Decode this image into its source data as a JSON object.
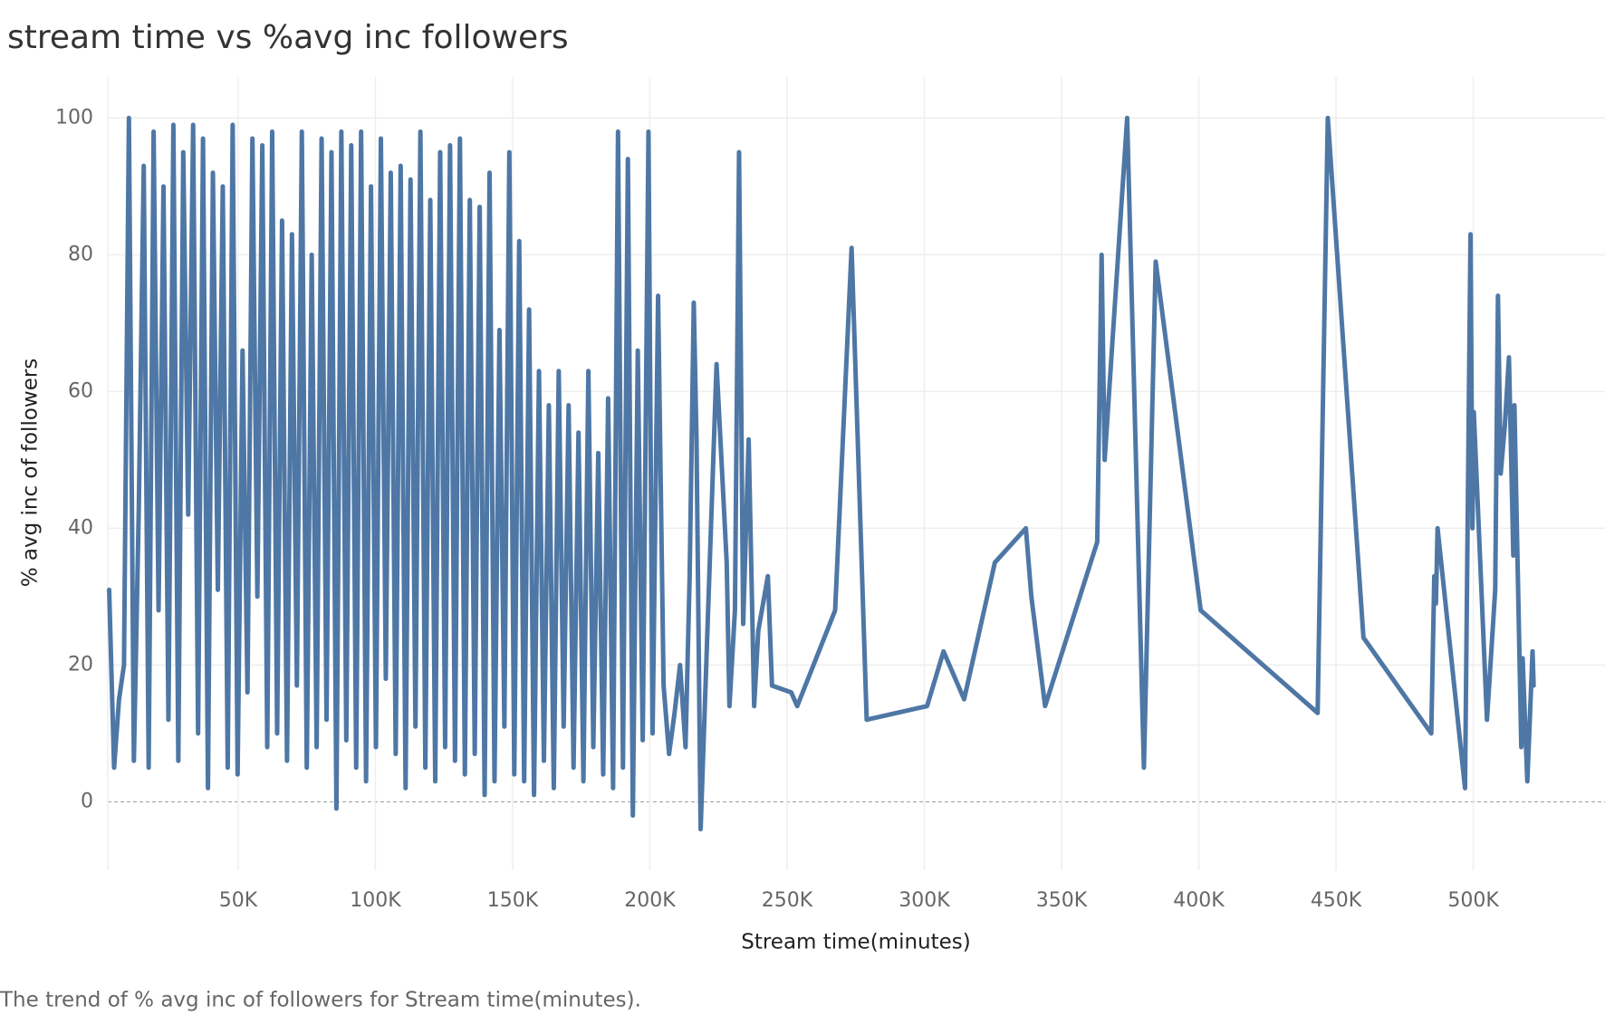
{
  "chart_data": {
    "type": "line",
    "title": "stream time vs %avg inc followers",
    "x_label": "Stream time(minutes)",
    "y_label": "% avg inc of followers",
    "caption": "The trend of % avg inc of followers for Stream time(minutes).",
    "color": "#4e77a5",
    "grid": true,
    "x": [
      3000,
      4800,
      6600,
      8400,
      10200,
      12000,
      13800,
      15600,
      17400,
      19200,
      21000,
      22800,
      24600,
      26400,
      28200,
      30000,
      31800,
      33600,
      35400,
      37200,
      39000,
      40800,
      42600,
      44400,
      46200,
      48000,
      49800,
      51600,
      53400,
      55200,
      57000,
      58800,
      60600,
      62400,
      64200,
      66000,
      67800,
      69600,
      71400,
      73200,
      75000,
      76800,
      78600,
      80400,
      82200,
      84000,
      85800,
      87600,
      89400,
      91200,
      93000,
      94800,
      96600,
      98400,
      100200,
      102000,
      103800,
      105600,
      107400,
      109200,
      111000,
      112800,
      114600,
      116400,
      118200,
      120000,
      121800,
      123600,
      125400,
      127200,
      129000,
      130800,
      132600,
      134400,
      136200,
      138000,
      139800,
      141600,
      143400,
      145200,
      147000,
      148800,
      150600,
      152400,
      154200,
      156000,
      157800,
      159600,
      161400,
      163200,
      165000,
      166800,
      168600,
      170400,
      172200,
      174000,
      175800,
      177600,
      179400,
      181200,
      183000,
      184800,
      186600,
      188400,
      190200,
      192000,
      193800,
      195600,
      197400,
      199500,
      201000,
      203000,
      205000,
      207000,
      209000,
      211000,
      213000,
      214500,
      216000,
      217000,
      218500,
      224300,
      228000,
      229000,
      231000,
      232500,
      234000,
      236000,
      238000,
      239500,
      243000,
      244500,
      251500,
      253700,
      267500,
      273500,
      279000,
      301000,
      307000,
      314500,
      325700,
      337000,
      339000,
      344000,
      363000,
      364600,
      365700,
      373900,
      380000,
      384300,
      400700,
      443300,
      447000,
      460000,
      484700,
      485800,
      486400,
      487000,
      497000,
      499000,
      499700,
      500200,
      505000,
      508000,
      509000,
      510000,
      511500,
      513000,
      514600,
      515000,
      517500,
      518000,
      519700,
      521600,
      522000
    ],
    "values": [
      31,
      5,
      15,
      20,
      100,
      6,
      43,
      93,
      5,
      98,
      28,
      90,
      12,
      99,
      6,
      95,
      42,
      99,
      10,
      97,
      2,
      92,
      31,
      90,
      5,
      99,
      4,
      66,
      16,
      97,
      30,
      96,
      8,
      98,
      10,
      85,
      6,
      83,
      17,
      98,
      5,
      80,
      8,
      97,
      12,
      95,
      -1,
      98,
      9,
      96,
      5,
      98,
      3,
      90,
      8,
      97,
      18,
      92,
      7,
      93,
      2,
      91,
      11,
      98,
      5,
      88,
      3,
      95,
      8,
      96,
      6,
      97,
      4,
      88,
      7,
      87,
      1,
      92,
      3,
      69,
      11,
      95,
      4,
      82,
      3,
      72,
      1,
      63,
      6,
      58,
      2,
      63,
      11,
      58,
      5,
      54,
      3,
      63,
      8,
      51,
      4,
      59,
      2,
      98,
      5,
      94,
      -2,
      66,
      9,
      98,
      10,
      74,
      17,
      7,
      13,
      20,
      8,
      33,
      73,
      53,
      -4,
      64,
      35,
      14,
      28,
      95,
      26,
      53,
      14,
      25,
      33,
      17,
      16,
      14,
      28,
      81,
      12,
      14,
      22,
      15,
      35,
      40,
      30,
      14,
      38,
      80,
      50,
      100,
      5,
      79,
      28,
      13,
      100,
      24,
      10,
      33,
      29,
      40,
      2,
      83,
      40,
      57,
      12,
      31,
      74,
      48,
      55,
      65,
      36,
      58,
      8,
      21,
      3,
      22,
      17
    ],
    "xlim": [
      2500,
      548000
    ],
    "xticks": [
      {
        "value": 50000,
        "label": "50K"
      },
      {
        "value": 100000,
        "label": "100K"
      },
      {
        "value": 150000,
        "label": "150K"
      },
      {
        "value": 200000,
        "label": "200K"
      },
      {
        "value": 250000,
        "label": "250K"
      },
      {
        "value": 300000,
        "label": "300K"
      },
      {
        "value": 350000,
        "label": "350K"
      },
      {
        "value": 400000,
        "label": "400K"
      },
      {
        "value": 450000,
        "label": "450K"
      },
      {
        "value": 500000,
        "label": "500K"
      }
    ],
    "ylim": [
      -10,
      106
    ],
    "yticks": [
      0,
      20,
      40,
      60,
      80,
      100
    ]
  }
}
